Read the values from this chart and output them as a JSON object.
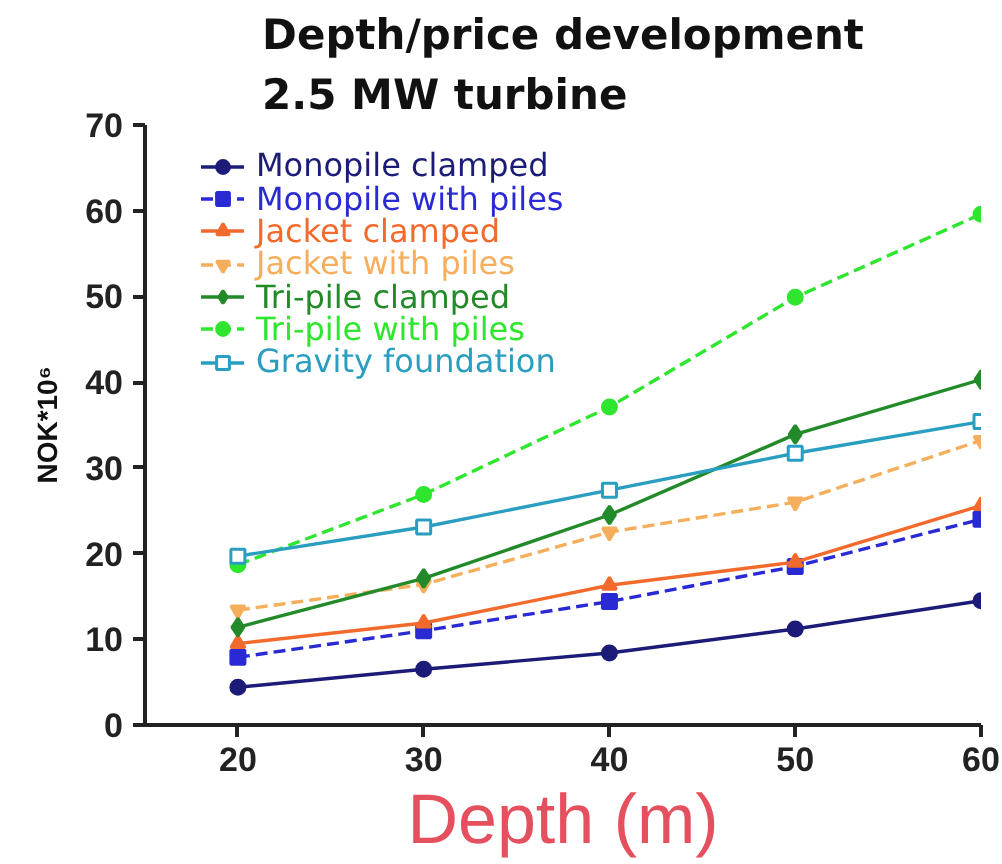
{
  "chart_data": {
    "type": "line",
    "title": "Depth/price development\n2.5 MW turbine",
    "xlabel": "Depth (m)",
    "ylabel": "NOK*10⁶",
    "x": [
      20,
      30,
      40,
      50,
      60
    ],
    "xlim": [
      15,
      60
    ],
    "xticks": [
      20,
      30,
      40,
      50,
      60
    ],
    "ylim": [
      0,
      70
    ],
    "yticks": [
      0,
      10,
      20,
      30,
      40,
      50,
      60,
      70
    ],
    "grid": false,
    "legend": "top left",
    "series": [
      {
        "name": "Monopile clamped",
        "color": "#1c1c78",
        "marker": "circle",
        "line_style": "solid",
        "values": [
          4.4,
          6.5,
          8.4,
          11.2,
          14.5
        ]
      },
      {
        "name": "Monopile with piles",
        "color": "#2a2ad4",
        "marker": "square",
        "line_style": "dashed",
        "values": [
          7.9,
          11.0,
          14.4,
          18.5,
          24.0
        ]
      },
      {
        "name": "Jacket clamped",
        "color": "#f26a2c",
        "marker": "triangle",
        "line_style": "solid",
        "values": [
          9.5,
          11.9,
          16.3,
          19.0,
          25.6
        ]
      },
      {
        "name": "Jacket with piles",
        "color": "#f5ae5c",
        "marker": "triangle_down",
        "line_style": "dashed",
        "values": [
          13.4,
          16.4,
          22.5,
          26.0,
          33.2
        ]
      },
      {
        "name": "Tri-pile clamped",
        "color": "#238a2a",
        "marker": "diamond",
        "line_style": "solid",
        "values": [
          11.4,
          17.1,
          24.5,
          33.9,
          40.3
        ]
      },
      {
        "name": "Tri-pile with piles",
        "color": "#2ee62e",
        "marker": "circle",
        "line_style": "dashed",
        "values": [
          18.7,
          26.9,
          37.1,
          49.9,
          59.6
        ]
      },
      {
        "name": "Gravity foundation",
        "color": "#2a9ec0",
        "marker": "square_open",
        "line_style": "solid",
        "values": [
          19.7,
          23.1,
          27.4,
          31.7,
          35.4
        ]
      }
    ]
  }
}
